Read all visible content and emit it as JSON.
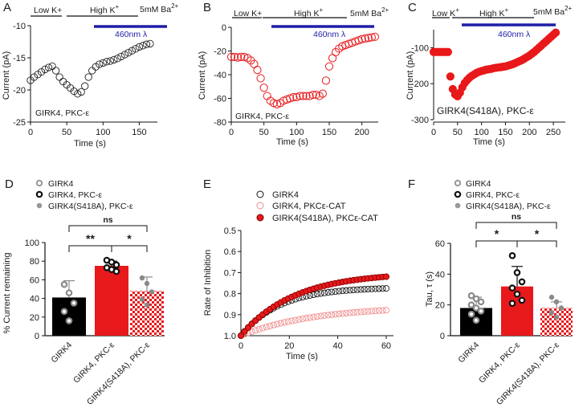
{
  "chart_data": [
    {
      "id": "A",
      "type": "scatter",
      "letter": "A",
      "xlabel": "Time (s)",
      "ylabel": "Current (pA)",
      "xlim": [
        0,
        175
      ],
      "ylim": [
        -25,
        -10
      ],
      "xticks": [
        "0",
        "50",
        "100",
        "150"
      ],
      "yticks": [
        "-10",
        "-15",
        "-20",
        "-25"
      ],
      "epochs": [
        "Low K+",
        "High K",
        "5mM Ba"
      ],
      "epoch_sup": [
        "",
        "+",
        "2+"
      ],
      "light_label": "460nm λ",
      "annotation": "GIRK4, PKC-ε",
      "marker_color": "#222222",
      "series": [
        {
          "name": "GIRK4, PKC-ε",
          "x": [
            0,
            5,
            10,
            15,
            20,
            25,
            30,
            35,
            40,
            45,
            50,
            55,
            60,
            65,
            70,
            75,
            80,
            85,
            90,
            95,
            100,
            105,
            110,
            115,
            120,
            125,
            130,
            135,
            140,
            145,
            150,
            155,
            160,
            165
          ],
          "y": [
            -18.5,
            -18,
            -17.6,
            -17.2,
            -16.8,
            -16.5,
            -16.3,
            -17,
            -18,
            -18.7,
            -19.2,
            -19.7,
            -20.2,
            -20.6,
            -20.3,
            -19.4,
            -18,
            -17,
            -16.4,
            -16,
            -15.8,
            -15.6,
            -15.5,
            -15.3,
            -15.1,
            -14.8,
            -14.5,
            -14.2,
            -13.9,
            -13.6,
            -13.3,
            -13.1,
            -12.9,
            -12.8
          ]
        }
      ]
    },
    {
      "id": "B",
      "type": "scatter",
      "letter": "B",
      "xlabel": "Time (s)",
      "ylabel": "Current (pA)",
      "xlim": [
        0,
        225
      ],
      "ylim": [
        -80,
        0
      ],
      "xticks": [
        "0",
        "50",
        "100",
        "150",
        "200"
      ],
      "yticks": [
        "0",
        "-20",
        "-40",
        "-60",
        "-80"
      ],
      "epochs": [
        "Low K+",
        "High K",
        "5mM Ba"
      ],
      "epoch_sup": [
        "",
        "+",
        "2+"
      ],
      "light_label": "460nm λ",
      "annotation": "GIRK4, PKC-ε",
      "marker_color": "#e8191b",
      "series": [
        {
          "name": "GIRK4, PKC-ε",
          "x": [
            0,
            5,
            10,
            15,
            20,
            25,
            30,
            35,
            40,
            45,
            50,
            55,
            60,
            65,
            70,
            75,
            80,
            85,
            90,
            95,
            100,
            105,
            110,
            115,
            120,
            125,
            130,
            135,
            140,
            145,
            150,
            155,
            160,
            165,
            170,
            175,
            180,
            185,
            190,
            195,
            200,
            205,
            210,
            215,
            220
          ],
          "y": [
            -25,
            -25,
            -25.5,
            -25,
            -25,
            -26,
            -28,
            -31,
            -36,
            -43,
            -51,
            -58,
            -62,
            -64,
            -65,
            -64,
            -62,
            -61,
            -60,
            -59,
            -59,
            -58,
            -58,
            -58,
            -58,
            -57,
            -57,
            -58,
            -56,
            -45,
            -33,
            -26,
            -21,
            -18,
            -16,
            -15,
            -14,
            -13,
            -12,
            -11,
            -10,
            -9.5,
            -9,
            -8.5,
            -8
          ]
        }
      ]
    },
    {
      "id": "C",
      "type": "scatter",
      "letter": "C",
      "xlabel": "Time (s)",
      "ylabel": "Current (pA)",
      "xlim": [
        0,
        275
      ],
      "ylim": [
        -300,
        -50
      ],
      "xticks": [
        "0",
        "50",
        "100",
        "150",
        "200",
        "250"
      ],
      "yticks": [
        "-100",
        "-200",
        "-300"
      ],
      "epochs": [
        "Low K",
        "High K",
        "5mM Ba"
      ],
      "epoch_sup": [
        "+",
        "+",
        "2+"
      ],
      "light_label": "460nm λ",
      "annotation": "GIRK4(S418A), PKC-ε",
      "marker_color": "#e8191b",
      "series": [
        {
          "name": "GIRK4(S418A), PKC-ε",
          "x": [
            0,
            5,
            10,
            15,
            20,
            25,
            30,
            35,
            40,
            45,
            50,
            55,
            60,
            65,
            70,
            75,
            80,
            85,
            90,
            95,
            100,
            105,
            110,
            115,
            120,
            125,
            130,
            135,
            140,
            145,
            150,
            155,
            160,
            165,
            170,
            175,
            180,
            185,
            190,
            195,
            200,
            205,
            210,
            215,
            220,
            225,
            230,
            235,
            240,
            245,
            250,
            255
          ],
          "y": [
            -112,
            -112,
            -112,
            -112,
            -112,
            -112,
            -112,
            -180,
            -215,
            -230,
            -235,
            -225,
            -210,
            -198,
            -190,
            -183,
            -178,
            -174,
            -170,
            -167,
            -165,
            -163,
            -161,
            -160,
            -159,
            -157,
            -156,
            -155,
            -154,
            -153,
            -152,
            -150,
            -148,
            -146,
            -143,
            -140,
            -137,
            -134,
            -130,
            -126,
            -122,
            -117,
            -112,
            -106,
            -100,
            -94,
            -88,
            -82,
            -76,
            -70,
            -64,
            -58
          ]
        }
      ]
    },
    {
      "id": "D",
      "type": "bar",
      "letter": "D",
      "ylabel": "% Current remaining",
      "ylim": [
        0,
        100
      ],
      "yticks": [
        "0",
        "20",
        "40",
        "60",
        "80",
        "100"
      ],
      "categories": [
        "GIRK4",
        "GIRK4, PKC-ε",
        "GIRK4(S418A), PKC-ε"
      ],
      "values": [
        41,
        75,
        48
      ],
      "errors": [
        18,
        5,
        15
      ],
      "points": [
        [
          55,
          46,
          35,
          26,
          16
        ],
        [
          81,
          79,
          76,
          73,
          71,
          69
        ],
        [
          62,
          56,
          47,
          39,
          33
        ]
      ],
      "legend": [
        "GIRK4",
        "GIRK4, PKC-ε",
        "GIRK4(S418A), PKC-ε"
      ],
      "significance": [
        {
          "label": "**"
        },
        {
          "label": "*"
        },
        {
          "label": "ns"
        }
      ]
    },
    {
      "id": "E",
      "type": "scatter",
      "letter": "E",
      "xlabel": "Time (s)",
      "ylabel": "Rate of Inhibition",
      "xlim": [
        0,
        63
      ],
      "ylim": [
        1.0,
        0.5
      ],
      "xticks": [
        "0",
        "20",
        "40",
        "60"
      ],
      "yticks": [
        "0.5",
        "0.6",
        "0.7",
        "0.8",
        "0.9",
        "1.0"
      ],
      "legend": [
        "GIRK4",
        "GIRK4, PKCε-CAT",
        "GIRK4(S418A), PKCε-CAT"
      ],
      "series": [
        {
          "name": "GIRK4",
          "tau": 16,
          "plateau": 0.77
        },
        {
          "name": "GIRK4, PKCε-CAT",
          "tau": 30,
          "plateau": 0.86
        },
        {
          "name": "GIRK4(S418A), PKCε-CAT",
          "tau": 22,
          "plateau": 0.7
        }
      ],
      "x_points": [
        0,
        1.5,
        3,
        4.5,
        6,
        7.5,
        9,
        10.5,
        12,
        13.5,
        15,
        16.5,
        18,
        19.5,
        21,
        22.5,
        24,
        25.5,
        27,
        28.5,
        30,
        31.5,
        33,
        34.5,
        36,
        37.5,
        39,
        40.5,
        42,
        43.5,
        45,
        46.5,
        48,
        49.5,
        51,
        52.5,
        54,
        55.5,
        57,
        58.5,
        60
      ]
    },
    {
      "id": "F",
      "type": "bar",
      "letter": "F",
      "ylabel": "Tau, τ (s)",
      "ylim": [
        0,
        60
      ],
      "yticks": [
        "0",
        "20",
        "40",
        "60"
      ],
      "categories": [
        "GIRK4",
        "GIRK4, PKC-ε",
        "GIRK4(S418A), PKC-ε"
      ],
      "values": [
        18,
        32,
        18
      ],
      "errors": [
        7,
        13,
        4
      ],
      "points": [
        [
          26,
          24,
          22,
          20,
          18,
          16,
          14,
          10
        ],
        [
          52,
          41,
          35,
          31,
          27,
          23,
          21
        ],
        [
          25,
          22,
          18,
          15,
          12
        ]
      ],
      "legend": [
        "GIRK4",
        "GIRK4, PKC-ε",
        "GIRK4(S418A), PKC-ε"
      ],
      "significance": [
        {
          "label": "*"
        },
        {
          "label": "*"
        },
        {
          "label": "ns"
        }
      ]
    }
  ]
}
